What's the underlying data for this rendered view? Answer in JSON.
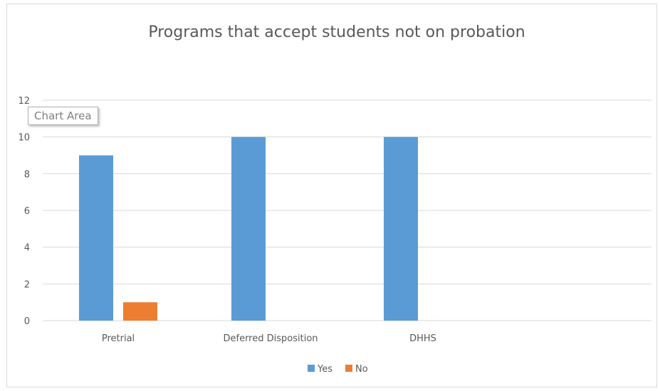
{
  "chart_data": {
    "type": "bar",
    "title": "Programs that accept students not on probation",
    "categories": [
      "Pretrial",
      "Deferred Disposition",
      "DHHS"
    ],
    "series": [
      {
        "name": "Yes",
        "values": [
          9,
          10,
          10
        ],
        "color": "#5b9bd5"
      },
      {
        "name": "No",
        "values": [
          1,
          0,
          0
        ],
        "color": "#ed7d31"
      }
    ],
    "ylim": [
      0,
      12
    ],
    "yticks": [
      0,
      2,
      4,
      6,
      8,
      10,
      12
    ],
    "grid": true,
    "legend": "bottom"
  },
  "tooltip": {
    "label": "Chart Area"
  }
}
